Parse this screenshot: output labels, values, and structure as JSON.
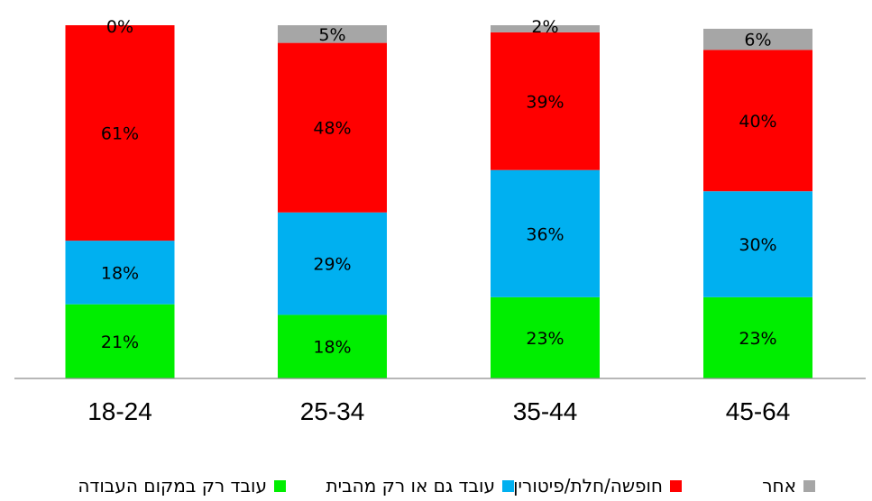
{
  "chart_data": {
    "type": "bar",
    "stacked": true,
    "categories": [
      "18-24",
      "25-34",
      "35-44",
      "45-64"
    ],
    "series": [
      {
        "name": "עובד רק במקום העבודה",
        "color": "#00ee00",
        "values": [
          21,
          18,
          23,
          23
        ]
      },
      {
        "name": "עובד גם או רק מהבית",
        "color": "#00b0f0",
        "values": [
          18,
          29,
          36,
          30
        ]
      },
      {
        "name": "חופשה/חלת/פיטורין",
        "color": "#ff0000",
        "values": [
          61,
          48,
          39,
          40
        ]
      },
      {
        "name": "אחר",
        "color": "#a6a6a6",
        "values": [
          0,
          5,
          2,
          6
        ]
      }
    ],
    "data_labels": [
      [
        "21%",
        "18%",
        "23%",
        "23%"
      ],
      [
        "18%",
        "29%",
        "36%",
        "30%"
      ],
      [
        "61%",
        "48%",
        "39%",
        "40%"
      ],
      [
        "0%",
        "5%",
        "2%",
        "6%"
      ]
    ],
    "ylim": [
      0,
      100
    ],
    "grid": false,
    "legend_position": "bottom"
  }
}
